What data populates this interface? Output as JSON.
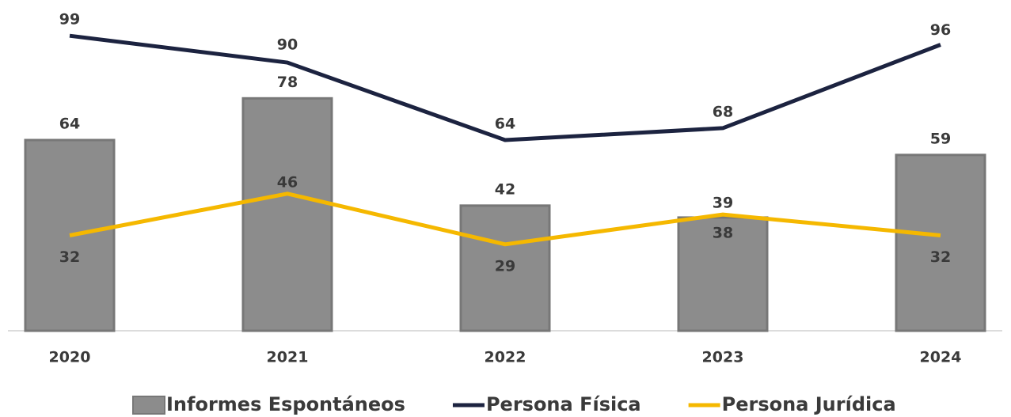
{
  "chart_data": {
    "type": "bar_line",
    "categories": [
      "2020",
      "2021",
      "2022",
      "2023",
      "2024"
    ],
    "series": [
      {
        "name": "Informes Espontáneos",
        "type": "bar",
        "color": "#8c8c8c",
        "values": [
          64,
          78,
          42,
          38,
          59
        ]
      },
      {
        "name": "Persona Física",
        "type": "line",
        "color": "#1c2340",
        "values": [
          99,
          90,
          64,
          68,
          96
        ]
      },
      {
        "name": "Persona Jurídica",
        "type": "line",
        "color": "#f5b800",
        "values": [
          32,
          46,
          29,
          39,
          32
        ]
      }
    ],
    "ylim": [
      0,
      111
    ],
    "legend": "bottom"
  }
}
